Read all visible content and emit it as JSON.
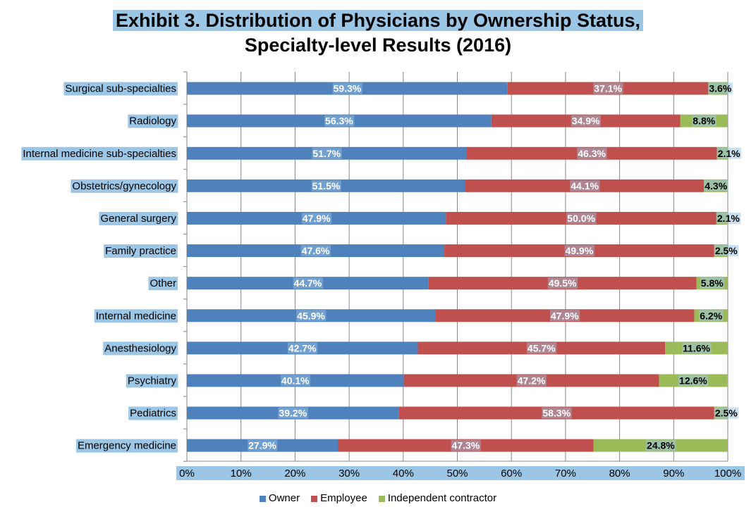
{
  "title_line1": "Exhibit 3. Distribution of Physicians by Ownership Status,",
  "title_line2": "Specialty-level Results (2016)",
  "chart_data": {
    "type": "bar",
    "orientation": "horizontal",
    "stacked": true,
    "percent": true,
    "title": "Exhibit 3. Distribution of Physicians by Ownership Status, Specialty-level Results (2016)",
    "xlabel": "",
    "ylabel": "",
    "xlim": [
      0,
      100
    ],
    "grid": true,
    "legend_position": "bottom",
    "categories": [
      "Surgical sub-specialties",
      "Radiology",
      "Internal medicine sub-specialties",
      "Obstetrics/gynecology",
      "General surgery",
      "Family practice",
      "Other",
      "Internal medicine",
      "Anesthesiology",
      "Psychiatry",
      "Pediatrics",
      "Emergency medicine"
    ],
    "x_ticks": [
      "0%",
      "10%",
      "20%",
      "30%",
      "40%",
      "50%",
      "60%",
      "70%",
      "80%",
      "90%",
      "100%"
    ],
    "series": [
      {
        "name": "Owner",
        "color": "#4f81bd",
        "values": [
          59.3,
          56.3,
          51.7,
          51.5,
          47.9,
          47.6,
          44.7,
          45.9,
          42.7,
          40.1,
          39.2,
          27.9
        ],
        "labels": [
          "59.3%",
          "56.3%",
          "51.7%",
          "51.5%",
          "47.9%",
          "47.6%",
          "44.7%",
          "45.9%",
          "42.7%",
          "40.1%",
          "39.2%",
          "27.9%"
        ]
      },
      {
        "name": "Employee",
        "color": "#c0504d",
        "values": [
          37.1,
          34.9,
          46.3,
          44.1,
          50.0,
          49.9,
          49.5,
          47.9,
          45.7,
          47.2,
          58.3,
          47.3
        ],
        "labels": [
          "37.1%",
          "34.9%",
          "46.3%",
          "44.1%",
          "50.0%",
          "49.9%",
          "49.5%",
          "47.9%",
          "45.7%",
          "47.2%",
          "58.3%",
          "47.3%"
        ]
      },
      {
        "name": "Independent contractor",
        "color": "#9bbb59",
        "values": [
          3.6,
          8.8,
          2.1,
          4.3,
          2.1,
          2.5,
          5.8,
          6.2,
          11.6,
          12.6,
          2.5,
          24.8
        ],
        "labels": [
          "3.6%",
          "8.8%",
          "2.1%",
          "4.3%",
          "2.1%",
          "2.5%",
          "5.8%",
          "6.2%",
          "11.6%",
          "12.6%",
          "2.5%",
          "24.8%"
        ]
      }
    ]
  },
  "colors": {
    "highlight": "#9cc6e6",
    "grid": "#868686"
  }
}
